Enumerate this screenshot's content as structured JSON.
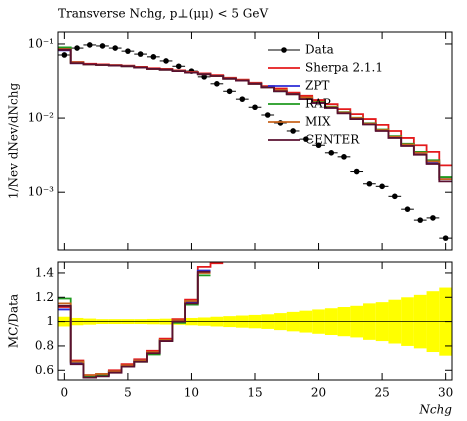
{
  "chart_data": [
    {
      "type": "step",
      "title": "Transverse Nchg, p⊥(μμ) < 5 GeV",
      "ylabel": "1/Nev dNev/dNchg",
      "log_y": true,
      "xlim": [
        -0.5,
        30.5
      ],
      "ylim": [
        0.000166,
        0.145
      ],
      "yticks": [
        {
          "value": 0.1,
          "label": "10⁻¹"
        },
        {
          "value": 0.01,
          "label": "10⁻²"
        },
        {
          "value": 0.001,
          "label": "10⁻³"
        }
      ],
      "x": [
        0,
        1,
        2,
        3,
        4,
        5,
        6,
        7,
        8,
        9,
        10,
        11,
        12,
        13,
        14,
        15,
        16,
        17,
        18,
        19,
        20,
        21,
        22,
        23,
        24,
        25,
        26,
        27,
        28,
        29,
        30
      ],
      "legend": "upper right",
      "series": [
        {
          "name": "Data",
          "color": "#000000",
          "marker": true,
          "values": [
            0.071,
            0.088,
            0.097,
            0.094,
            0.088,
            0.08,
            0.073,
            0.067,
            0.059,
            0.05,
            0.043,
            0.036,
            0.029,
            0.023,
            0.018,
            0.014,
            0.011,
            0.0086,
            0.0067,
            0.0052,
            0.0043,
            0.0034,
            0.003,
            0.0019,
            0.0013,
            0.0012,
            0.00088,
            0.00059,
            0.00042,
            0.00045,
            0.00024
          ]
        },
        {
          "name": "Sherpa 2.1.1",
          "color": "#e41a1c",
          "values": [
            0.086,
            0.057,
            0.054,
            0.053,
            0.052,
            0.051,
            0.049,
            0.047,
            0.046,
            0.044,
            0.042,
            0.04,
            0.038,
            0.035,
            0.033,
            0.03,
            0.027,
            0.025,
            0.022,
            0.02,
            0.0175,
            0.0154,
            0.0132,
            0.0113,
            0.0097,
            0.0081,
            0.0067,
            0.0054,
            0.0043,
            0.0035,
            0.0023
          ]
        },
        {
          "name": "ZPT",
          "color": "#2b2bd6",
          "values": [
            0.082,
            0.055,
            0.053,
            0.052,
            0.051,
            0.05,
            0.048,
            0.046,
            0.045,
            0.043,
            0.041,
            0.039,
            0.037,
            0.034,
            0.032,
            0.029,
            0.026,
            0.023,
            0.021,
            0.018,
            0.016,
            0.0138,
            0.0117,
            0.0098,
            0.0083,
            0.0068,
            0.0055,
            0.0043,
            0.0033,
            0.0025,
            0.0015
          ]
        },
        {
          "name": "RAP",
          "color": "#1f9a1f",
          "values": [
            0.09,
            0.056,
            0.053,
            0.052,
            0.051,
            0.05,
            0.048,
            0.046,
            0.045,
            0.043,
            0.041,
            0.039,
            0.037,
            0.034,
            0.032,
            0.029,
            0.026,
            0.023,
            0.021,
            0.019,
            0.0165,
            0.0142,
            0.012,
            0.0101,
            0.0085,
            0.007,
            0.0057,
            0.0045,
            0.0035,
            0.0027,
            0.0016
          ]
        },
        {
          "name": "MIX",
          "color": "#c8641e",
          "values": [
            0.084,
            0.056,
            0.053,
            0.052,
            0.051,
            0.05,
            0.048,
            0.046,
            0.045,
            0.043,
            0.041,
            0.039,
            0.037,
            0.034,
            0.032,
            0.029,
            0.026,
            0.024,
            0.021,
            0.019,
            0.0163,
            0.014,
            0.0119,
            0.01,
            0.0084,
            0.0069,
            0.0056,
            0.0044,
            0.0034,
            0.0026,
            0.0015
          ]
        },
        {
          "name": "CENTER",
          "color": "#5a1030",
          "values": [
            0.083,
            0.055,
            0.053,
            0.052,
            0.051,
            0.05,
            0.048,
            0.046,
            0.045,
            0.043,
            0.041,
            0.039,
            0.037,
            0.034,
            0.032,
            0.029,
            0.026,
            0.023,
            0.021,
            0.018,
            0.016,
            0.0137,
            0.0116,
            0.0097,
            0.0082,
            0.0067,
            0.0054,
            0.0042,
            0.0032,
            0.0024,
            0.0014
          ]
        }
      ]
    },
    {
      "type": "step",
      "ylabel": "MC/Data",
      "xlabel": "Nchg",
      "xlim": [
        -0.5,
        30.5
      ],
      "ylim": [
        0.52,
        1.49
      ],
      "xticks": [
        0,
        5,
        10,
        15,
        20,
        25,
        30
      ],
      "yticks": [
        0.6,
        0.8,
        1,
        1.2,
        1.4
      ],
      "reference": 1,
      "band": {
        "color": "#ffff00",
        "errors": [
          0.04,
          0.03,
          0.025,
          0.02,
          0.02,
          0.02,
          0.02,
          0.022,
          0.024,
          0.026,
          0.03,
          0.034,
          0.04,
          0.045,
          0.05,
          0.055,
          0.06,
          0.07,
          0.08,
          0.09,
          0.1,
          0.11,
          0.12,
          0.13,
          0.15,
          0.16,
          0.18,
          0.2,
          0.22,
          0.25,
          0.28
        ]
      },
      "series": [
        {
          "name": "Sherpa 2.1.1",
          "color": "#e41a1c",
          "values": [
            1.12,
            0.68,
            0.56,
            0.57,
            0.6,
            0.65,
            0.69,
            0.76,
            0.86,
            1.02,
            1.18,
            1.45,
            1.48,
            null,
            null,
            null,
            null,
            null,
            null,
            null,
            null,
            null,
            null,
            null,
            null,
            null,
            null,
            null,
            null,
            null,
            null
          ]
        },
        {
          "name": "ZPT",
          "color": "#2b2bd6",
          "values": [
            1.1,
            0.66,
            0.55,
            0.56,
            0.59,
            0.64,
            0.68,
            0.74,
            0.85,
            1.0,
            1.16,
            1.42,
            null,
            null,
            null,
            null,
            null,
            null,
            null,
            null,
            null,
            null,
            null,
            null,
            null,
            null,
            null,
            null,
            null,
            null,
            null
          ]
        },
        {
          "name": "RAP",
          "color": "#1f9a1f",
          "values": [
            1.19,
            0.67,
            0.55,
            0.56,
            0.59,
            0.63,
            0.67,
            0.73,
            0.84,
            0.99,
            1.14,
            1.38,
            null,
            null,
            null,
            null,
            null,
            null,
            null,
            null,
            null,
            null,
            null,
            null,
            null,
            null,
            null,
            null,
            null,
            null,
            null
          ]
        },
        {
          "name": "MIX",
          "color": "#c8641e",
          "values": [
            1.15,
            0.67,
            0.56,
            0.57,
            0.59,
            0.64,
            0.68,
            0.75,
            0.85,
            1.01,
            1.17,
            1.4,
            null,
            null,
            null,
            null,
            null,
            null,
            null,
            null,
            null,
            null,
            null,
            null,
            null,
            null,
            null,
            null,
            null,
            null,
            null
          ]
        },
        {
          "name": "CENTER",
          "color": "#5a1030",
          "values": [
            1.13,
            0.65,
            0.54,
            0.55,
            0.58,
            0.63,
            0.67,
            0.74,
            0.84,
            1.0,
            1.15,
            1.41,
            null,
            null,
            null,
            null,
            null,
            null,
            null,
            null,
            null,
            null,
            null,
            null,
            null,
            null,
            null,
            null,
            null,
            null,
            null
          ]
        }
      ]
    }
  ]
}
